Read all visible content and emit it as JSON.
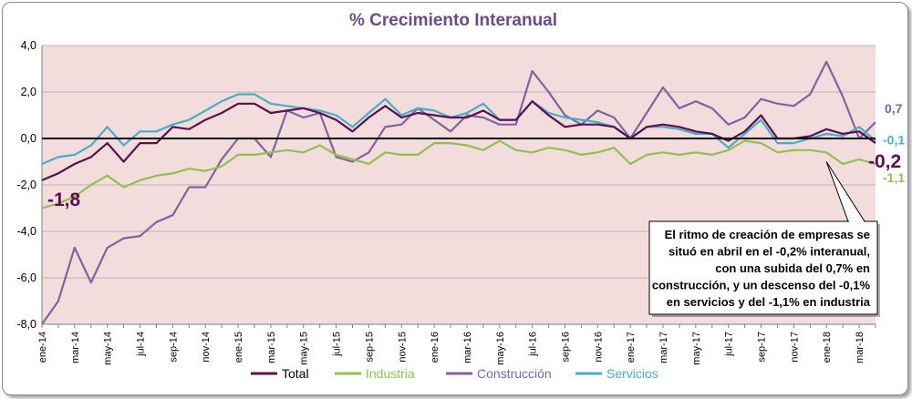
{
  "chart_data": {
    "type": "line",
    "title": "% Crecimiento Interanual",
    "xlabel": "",
    "ylabel": "",
    "ylim": [
      -8,
      4
    ],
    "y_ticks": [
      "4,0",
      "2,0",
      "0,0",
      "-2,0",
      "-4,0",
      "-6,0",
      "-8,0"
    ],
    "y_tick_values": [
      4,
      2,
      0,
      -2,
      -4,
      -6,
      -8
    ],
    "x_tick_labels": [
      "ene-14",
      "mar-14",
      "may-14",
      "jul-14",
      "sep-14",
      "nov-14",
      "ene-15",
      "mar-15",
      "may-15",
      "jul-15",
      "sep-15",
      "nov-15",
      "ene-16",
      "mar-16",
      "may-16",
      "jul-16",
      "sep-16",
      "nov-16",
      "ene-17",
      "mar-17",
      "may-17",
      "jul-17",
      "sep-17",
      "nov-17",
      "ene-18",
      "mar-18"
    ],
    "grid": true,
    "legend_position": "bottom",
    "background_color": "#f2dcdc",
    "series": [
      {
        "name": "Total",
        "color": "#5b0f4f",
        "values": [
          -1.8,
          -1.5,
          -1.1,
          -0.8,
          -0.2,
          -1.0,
          -0.2,
          -0.2,
          0.5,
          0.4,
          0.8,
          1.1,
          1.5,
          1.5,
          1.1,
          1.2,
          1.3,
          1.1,
          0.8,
          0.3,
          0.9,
          1.4,
          0.9,
          1.1,
          1.0,
          0.9,
          0.9,
          1.2,
          0.8,
          0.8,
          1.6,
          1.0,
          0.5,
          0.6,
          0.6,
          0.5,
          0.0,
          0.5,
          0.6,
          0.5,
          0.3,
          0.2,
          -0.1,
          0.3,
          1.0,
          0.0,
          0.0,
          0.1,
          0.4,
          0.2,
          0.3,
          -0.2
        ]
      },
      {
        "name": "Industria",
        "color": "#92c050",
        "values": [
          -3.0,
          -2.8,
          -2.5,
          -2.0,
          -1.6,
          -2.1,
          -1.8,
          -1.6,
          -1.5,
          -1.3,
          -1.4,
          -1.2,
          -0.7,
          -0.7,
          -0.6,
          -0.5,
          -0.6,
          -0.3,
          -0.7,
          -0.9,
          -1.1,
          -0.6,
          -0.7,
          -0.7,
          -0.2,
          -0.2,
          -0.3,
          -0.5,
          -0.1,
          -0.5,
          -0.6,
          -0.4,
          -0.5,
          -0.7,
          -0.6,
          -0.4,
          -1.1,
          -0.7,
          -0.6,
          -0.7,
          -0.6,
          -0.7,
          -0.5,
          -0.1,
          -0.2,
          -0.6,
          -0.5,
          -0.5,
          -0.6,
          -1.1,
          -0.9,
          -1.1
        ]
      },
      {
        "name": "Construcción",
        "color": "#8064a2",
        "values": [
          -8.0,
          -7.0,
          -4.7,
          -6.2,
          -4.7,
          -4.3,
          -4.2,
          -3.6,
          -3.3,
          -2.1,
          -2.1,
          -0.9,
          0.0,
          0.0,
          -0.8,
          1.2,
          0.9,
          1.1,
          -0.8,
          -1.0,
          -0.6,
          0.5,
          0.6,
          1.3,
          0.8,
          0.3,
          1.0,
          0.9,
          0.6,
          0.6,
          2.9,
          2.0,
          1.0,
          0.6,
          1.2,
          0.9,
          0.0,
          1.1,
          2.2,
          1.3,
          1.6,
          1.3,
          0.6,
          0.9,
          1.7,
          1.5,
          1.4,
          1.9,
          3.3,
          1.8,
          0.0,
          0.7
        ]
      },
      {
        "name": "Servicios",
        "color": "#4bacc6",
        "values": [
          -1.1,
          -0.8,
          -0.7,
          -0.3,
          0.5,
          -0.3,
          0.3,
          0.3,
          0.6,
          0.8,
          1.2,
          1.6,
          1.9,
          1.9,
          1.5,
          1.4,
          1.3,
          1.2,
          1.0,
          0.5,
          1.1,
          1.7,
          1.0,
          1.3,
          1.2,
          0.9,
          1.1,
          1.5,
          0.8,
          0.8,
          1.6,
          1.1,
          0.9,
          0.8,
          0.7,
          0.5,
          0.0,
          0.5,
          0.5,
          0.4,
          0.2,
          0.2,
          -0.4,
          0.2,
          0.8,
          -0.2,
          -0.2,
          0.0,
          0.2,
          0.1,
          0.5,
          -0.1
        ]
      }
    ],
    "data_labels": {
      "total_first": "-1,8",
      "construccion_last": "0,7",
      "servicios_last": "-0,1",
      "total_last": "-0,2",
      "industria_last": "-1,1"
    },
    "annotation_lines": [
      "El ritmo de creación de empresas se",
      "situó en abril en el -0,2% interanual,",
      "con una subida del 0,7% en",
      "construcción, y un descenso del -0,1%",
      "en servicios y del -1,1% en industria"
    ]
  }
}
